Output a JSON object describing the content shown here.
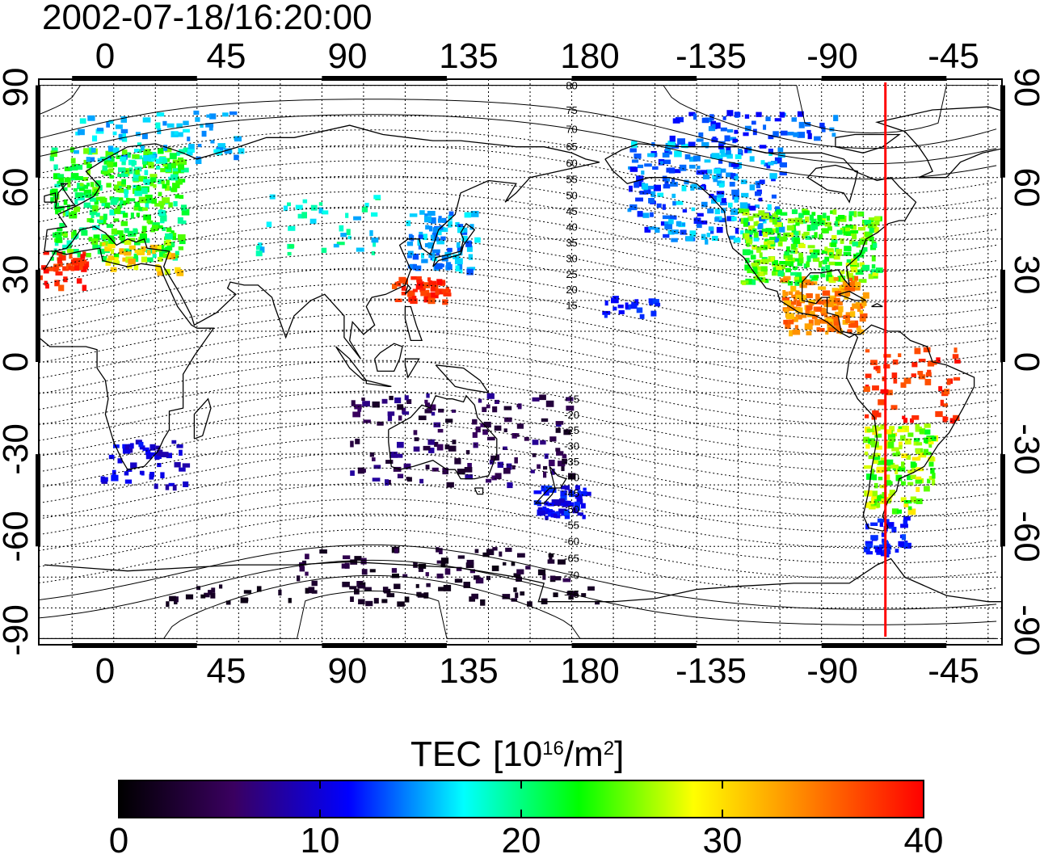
{
  "title": "2002-07-18/16:20:00",
  "map": {
    "lon_ticks_top": [
      "0",
      "45",
      "90",
      "135",
      "180",
      "-135",
      "-90",
      "-45"
    ],
    "lon_ticks_bottom": [
      "0",
      "45",
      "90",
      "135",
      "180",
      "-135",
      "-90",
      "-45"
    ],
    "lat_ticks_left": [
      "90",
      "60",
      "30",
      "0",
      "-30",
      "-60",
      "-90"
    ],
    "lat_ticks_right": [
      "90",
      "60",
      "30",
      "0",
      "-30",
      "-60",
      "-90"
    ],
    "lon_range": [
      -12,
      335
    ],
    "lat_range": [
      -92,
      92
    ],
    "marker_longitude": -67,
    "marker_color": "#ff0000",
    "north_contour_labels": [
      "80",
      "75",
      "70",
      "65",
      "60",
      "55",
      "50",
      "45",
      "40",
      "35",
      "30",
      "25",
      "20",
      "15"
    ],
    "south_contour_labels": [
      "15",
      "20",
      "25",
      "30",
      "35",
      "40",
      "45",
      "50",
      "55",
      "60",
      "65",
      "70",
      "75"
    ]
  },
  "colorbar": {
    "label": "TEC",
    "unit_base": "[10",
    "unit_exp": "16",
    "unit_mid": "/m",
    "unit_exp2": "2",
    "unit_close": "]",
    "min": 0,
    "max": 40,
    "ticks": [
      "0",
      "10",
      "20",
      "30",
      "40"
    ],
    "colors": [
      "#000000",
      "#3a0060",
      "#0000ff",
      "#00ffff",
      "#00ff00",
      "#ffff00",
      "#ff8000",
      "#ff0000"
    ]
  }
}
